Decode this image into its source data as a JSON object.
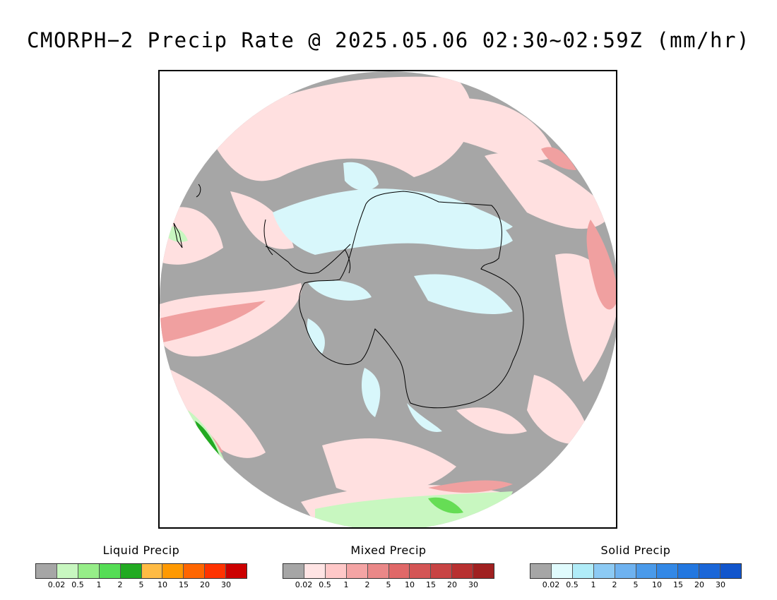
{
  "title": "CMORPH−2 Precip Rate @ 2025.05.06 02:30~02:59Z (mm/hr)",
  "map": {
    "projection": "south-polar-stereographic",
    "colors": {
      "no_precip": "#a6a6a6",
      "liquid_light": "#c8f7c0",
      "liquid_mid": "#66dd55",
      "liquid_dark": "#22aa22",
      "mixed_light": "#ffe0e0",
      "mixed_mid": "#f0a0a0",
      "mixed_dark": "#e07070",
      "solid_light": "#d8f7fb",
      "coast": "#000000"
    }
  },
  "legends": [
    {
      "title": "Liquid Precip",
      "labels": [
        "0.02",
        "0.5",
        "1",
        "2",
        "5",
        "10",
        "15",
        "20",
        "30"
      ],
      "colors": [
        "#a6a6a6",
        "#c8f7c0",
        "#96ee88",
        "#55dd55",
        "#22aa22",
        "#ffbb44",
        "#ff9900",
        "#ff6600",
        "#ff3300",
        "#cc0000"
      ]
    },
    {
      "title": "Mixed Precip",
      "labels": [
        "0.02",
        "0.5",
        "1",
        "2",
        "5",
        "10",
        "15",
        "20",
        "30"
      ],
      "colors": [
        "#a6a6a6",
        "#ffe4e4",
        "#ffc8c8",
        "#f4a4a4",
        "#ea8888",
        "#e06868",
        "#d45555",
        "#c84444",
        "#b83030",
        "#a02020"
      ]
    },
    {
      "title": "Solid Precip",
      "labels": [
        "0.02",
        "0.5",
        "1",
        "2",
        "5",
        "10",
        "15",
        "20",
        "30"
      ],
      "colors": [
        "#a6a6a6",
        "#e0fbfd",
        "#b0ecf8",
        "#8ccaf4",
        "#6eb2f0",
        "#4a9aea",
        "#3388e6",
        "#2277e0",
        "#1a66d8",
        "#1155cc"
      ]
    }
  ]
}
